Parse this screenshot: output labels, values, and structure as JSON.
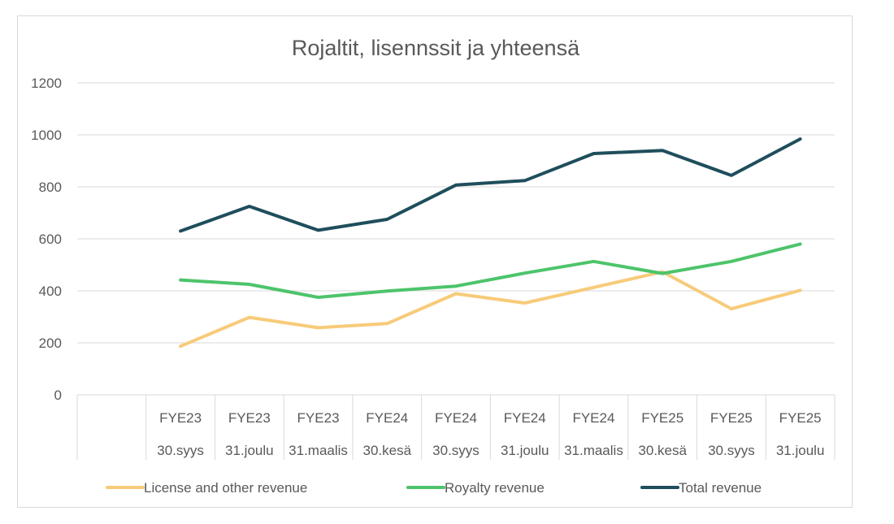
{
  "chart_data": {
    "type": "line",
    "title": "Rojaltit, lisennssit ja yhteensä",
    "xlabel": "",
    "ylabel": "",
    "ylim": [
      0,
      1200
    ],
    "yticks": [
      0,
      200,
      400,
      600,
      800,
      1000,
      1200
    ],
    "grid": true,
    "legend_position": "bottom",
    "categories": [
      [
        "FYE23",
        "30.syys"
      ],
      [
        "FYE23",
        "31.joulu"
      ],
      [
        "FYE23",
        "31.maalis"
      ],
      [
        "FYE24",
        "30.kesä"
      ],
      [
        "FYE24",
        "30.syys"
      ],
      [
        "FYE24",
        "31.joulu"
      ],
      [
        "FYE24",
        "31.maalis"
      ],
      [
        "FYE25",
        "30.kesä"
      ],
      [
        "FYE25",
        "30.syys"
      ],
      [
        "FYE25",
        "31.joulu"
      ]
    ],
    "series": [
      {
        "name": "License and other revenue",
        "color": "#f7cb7a",
        "values": [
          187,
          298,
          258,
          274,
          389,
          353,
          413,
          473,
          331,
          402
        ]
      },
      {
        "name": "Royalty revenue",
        "color": "#4dc46b",
        "values": [
          442,
          425,
          375,
          399,
          418,
          468,
          513,
          467,
          513,
          580
        ]
      },
      {
        "name": "Total revenue",
        "color": "#1f4e5c",
        "values": [
          630,
          725,
          633,
          675,
          807,
          824,
          928,
          940,
          844,
          984
        ]
      }
    ]
  }
}
